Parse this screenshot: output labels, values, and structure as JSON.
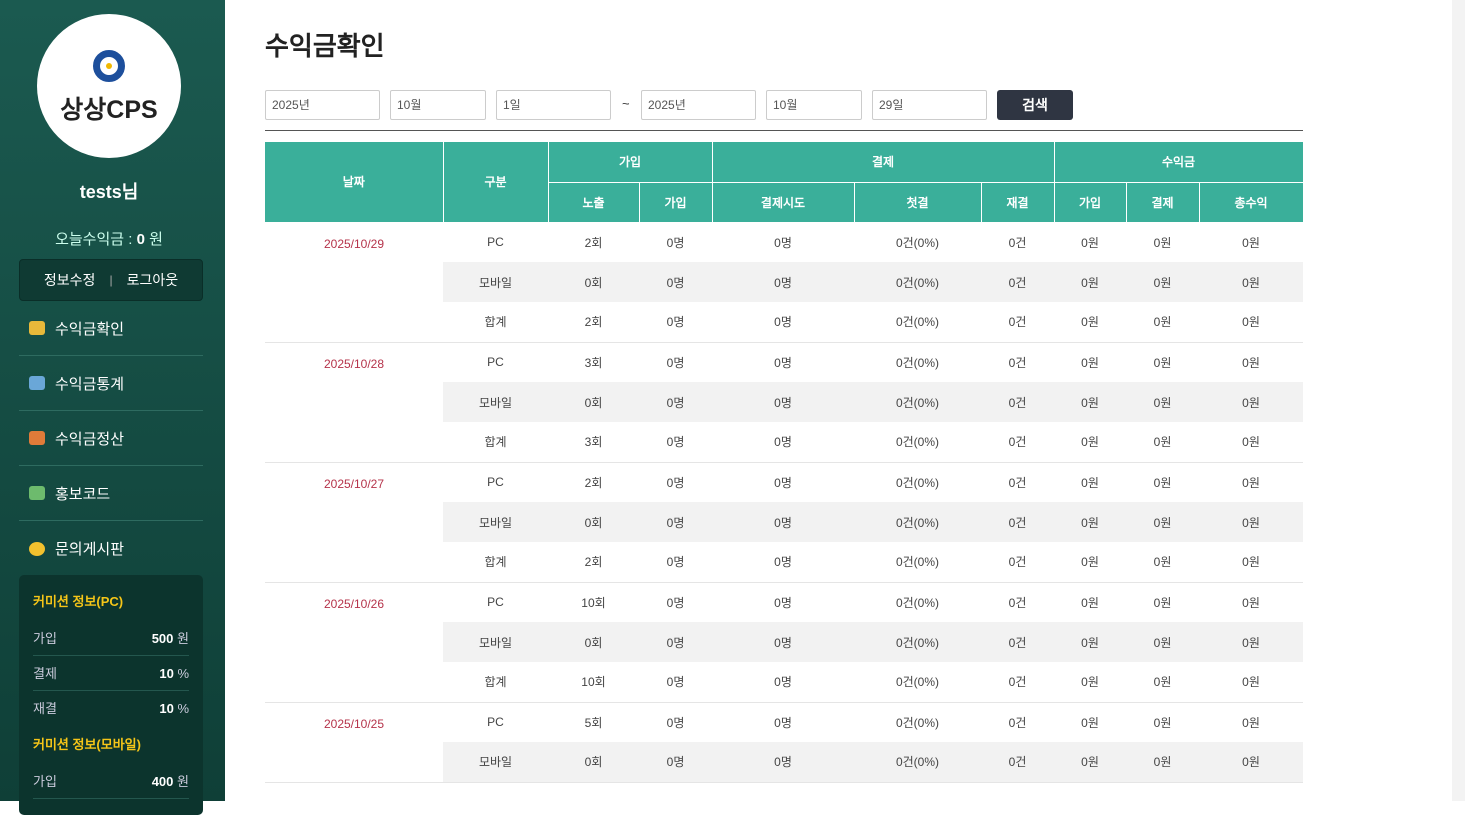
{
  "sidebar": {
    "logo": "상상CPS",
    "user": "tests님",
    "today_label": "오늘수익금 :",
    "today_value": "0",
    "today_unit": "원",
    "links": [
      "정보수정",
      "로그아웃"
    ],
    "separator": "|",
    "menu": [
      "수익금확인",
      "수익금통계",
      "수익금정산",
      "홍보코드",
      "문의게시판"
    ],
    "commission": [
      {
        "title": "커미션 정보(PC)",
        "rows": [
          {
            "label": "가입",
            "value": "500",
            "unit": "원"
          },
          {
            "label": "결제",
            "value": "10",
            "unit": "%"
          },
          {
            "label": "재결",
            "value": "10",
            "unit": "%"
          }
        ]
      },
      {
        "title": "커미션 정보(모바일)",
        "rows": [
          {
            "label": "가입",
            "value": "400",
            "unit": "원"
          }
        ]
      }
    ]
  },
  "header": {
    "title": "수익금확인"
  },
  "filter": {
    "from": [
      "2025년",
      "10월",
      "1일"
    ],
    "tilde": "~",
    "to": [
      "2025년",
      "10월",
      "29일"
    ],
    "button": "검색"
  },
  "table": {
    "top_headers": [
      "날짜",
      "구분",
      "가입",
      "결제",
      "수익금"
    ],
    "sub_headers": [
      "노출",
      "가입",
      "결제시도",
      "첫결",
      "재결",
      "가입",
      "결제",
      "총수익"
    ],
    "groups": [
      {
        "date": "2025/10/29",
        "rows": [
          [
            "PC",
            "2회",
            "0명",
            "0명",
            "0건(0%)",
            "0건",
            "0원",
            "0원",
            "0원"
          ],
          [
            "모바일",
            "0회",
            "0명",
            "0명",
            "0건(0%)",
            "0건",
            "0원",
            "0원",
            "0원"
          ],
          [
            "합계",
            "2회",
            "0명",
            "0명",
            "0건(0%)",
            "0건",
            "0원",
            "0원",
            "0원"
          ]
        ]
      },
      {
        "date": "2025/10/28",
        "rows": [
          [
            "PC",
            "3회",
            "0명",
            "0명",
            "0건(0%)",
            "0건",
            "0원",
            "0원",
            "0원"
          ],
          [
            "모바일",
            "0회",
            "0명",
            "0명",
            "0건(0%)",
            "0건",
            "0원",
            "0원",
            "0원"
          ],
          [
            "합계",
            "3회",
            "0명",
            "0명",
            "0건(0%)",
            "0건",
            "0원",
            "0원",
            "0원"
          ]
        ]
      },
      {
        "date": "2025/10/27",
        "rows": [
          [
            "PC",
            "2회",
            "0명",
            "0명",
            "0건(0%)",
            "0건",
            "0원",
            "0원",
            "0원"
          ],
          [
            "모바일",
            "0회",
            "0명",
            "0명",
            "0건(0%)",
            "0건",
            "0원",
            "0원",
            "0원"
          ],
          [
            "합계",
            "2회",
            "0명",
            "0명",
            "0건(0%)",
            "0건",
            "0원",
            "0원",
            "0원"
          ]
        ]
      },
      {
        "date": "2025/10/26",
        "rows": [
          [
            "PC",
            "10회",
            "0명",
            "0명",
            "0건(0%)",
            "0건",
            "0원",
            "0원",
            "0원"
          ],
          [
            "모바일",
            "0회",
            "0명",
            "0명",
            "0건(0%)",
            "0건",
            "0원",
            "0원",
            "0원"
          ],
          [
            "합계",
            "10회",
            "0명",
            "0명",
            "0건(0%)",
            "0건",
            "0원",
            "0원",
            "0원"
          ]
        ]
      },
      {
        "date": "2025/10/25",
        "rows": [
          [
            "PC",
            "5회",
            "0명",
            "0명",
            "0건(0%)",
            "0건",
            "0원",
            "0원",
            "0원"
          ],
          [
            "모바일",
            "0회",
            "0명",
            "0명",
            "0건(0%)",
            "0건",
            "0원",
            "0원",
            "0원"
          ]
        ]
      }
    ]
  }
}
